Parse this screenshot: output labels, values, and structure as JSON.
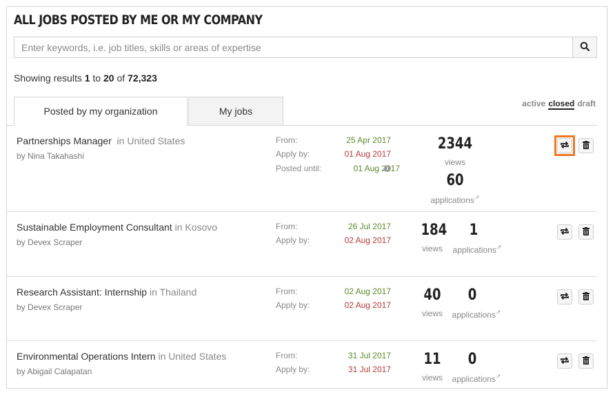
{
  "header": {
    "title": "ALL JOBS POSTED BY ME OR MY COMPANY"
  },
  "search": {
    "placeholder": "Enter keywords, i.e. job titles, skills or areas of expertise"
  },
  "results": {
    "prefix": "Showing results ",
    "from": "1",
    "to_word": " to ",
    "to": "20",
    "of_word": " of ",
    "total": "72,323"
  },
  "tabs": [
    {
      "label": "Posted by my organization",
      "active": true
    },
    {
      "label": "My jobs",
      "active": false
    }
  ],
  "status_filter": {
    "active": "active",
    "closed": "closed",
    "draft": "draft",
    "selected": "closed"
  },
  "labels": {
    "from": "From:",
    "apply_by": "Apply by:",
    "posted_until": "Posted until:",
    "views": "views",
    "applications": "applications"
  },
  "jobs": [
    {
      "title": "Partnerships Manager",
      "in_word": "in",
      "location": "United States",
      "by": "by",
      "author": "Nina Takahashi",
      "from": "25 Apr 2017",
      "apply_by": "01 Aug 2017",
      "posted_until": "01 Aug 2017",
      "views": "2344",
      "applications": "60"
    },
    {
      "title": "Sustainable Employment Consultant",
      "in_word": "in",
      "location": "Kosovo",
      "by": "by",
      "author": "Devex Scraper",
      "from": "26 Jul 2017",
      "apply_by": "02 Aug 2017",
      "views": "184",
      "applications": "1"
    },
    {
      "title": "Research Assistant: Internship",
      "in_word": "in",
      "location": "Thailand",
      "by": "by",
      "author": "Devex Scraper",
      "from": "02 Aug 2017",
      "apply_by": "02 Aug 2017",
      "views": "40",
      "applications": "0"
    },
    {
      "title": "Environmental Operations Intern",
      "in_word": "in",
      "location": "United States",
      "by": "by",
      "author": "Abigail Calapatan",
      "from": "31 Jul 2017",
      "apply_by": "31 Jul 2017",
      "views": "11",
      "applications": "0"
    }
  ],
  "icons": {
    "search": "search-icon",
    "repost": "repost-icon",
    "delete": "trash-icon",
    "info": "info-icon",
    "external": "external-link-icon"
  },
  "colors": {
    "highlight": "#ee7a22",
    "date_green": "#5a8a2a",
    "date_red": "#b53a3a"
  }
}
